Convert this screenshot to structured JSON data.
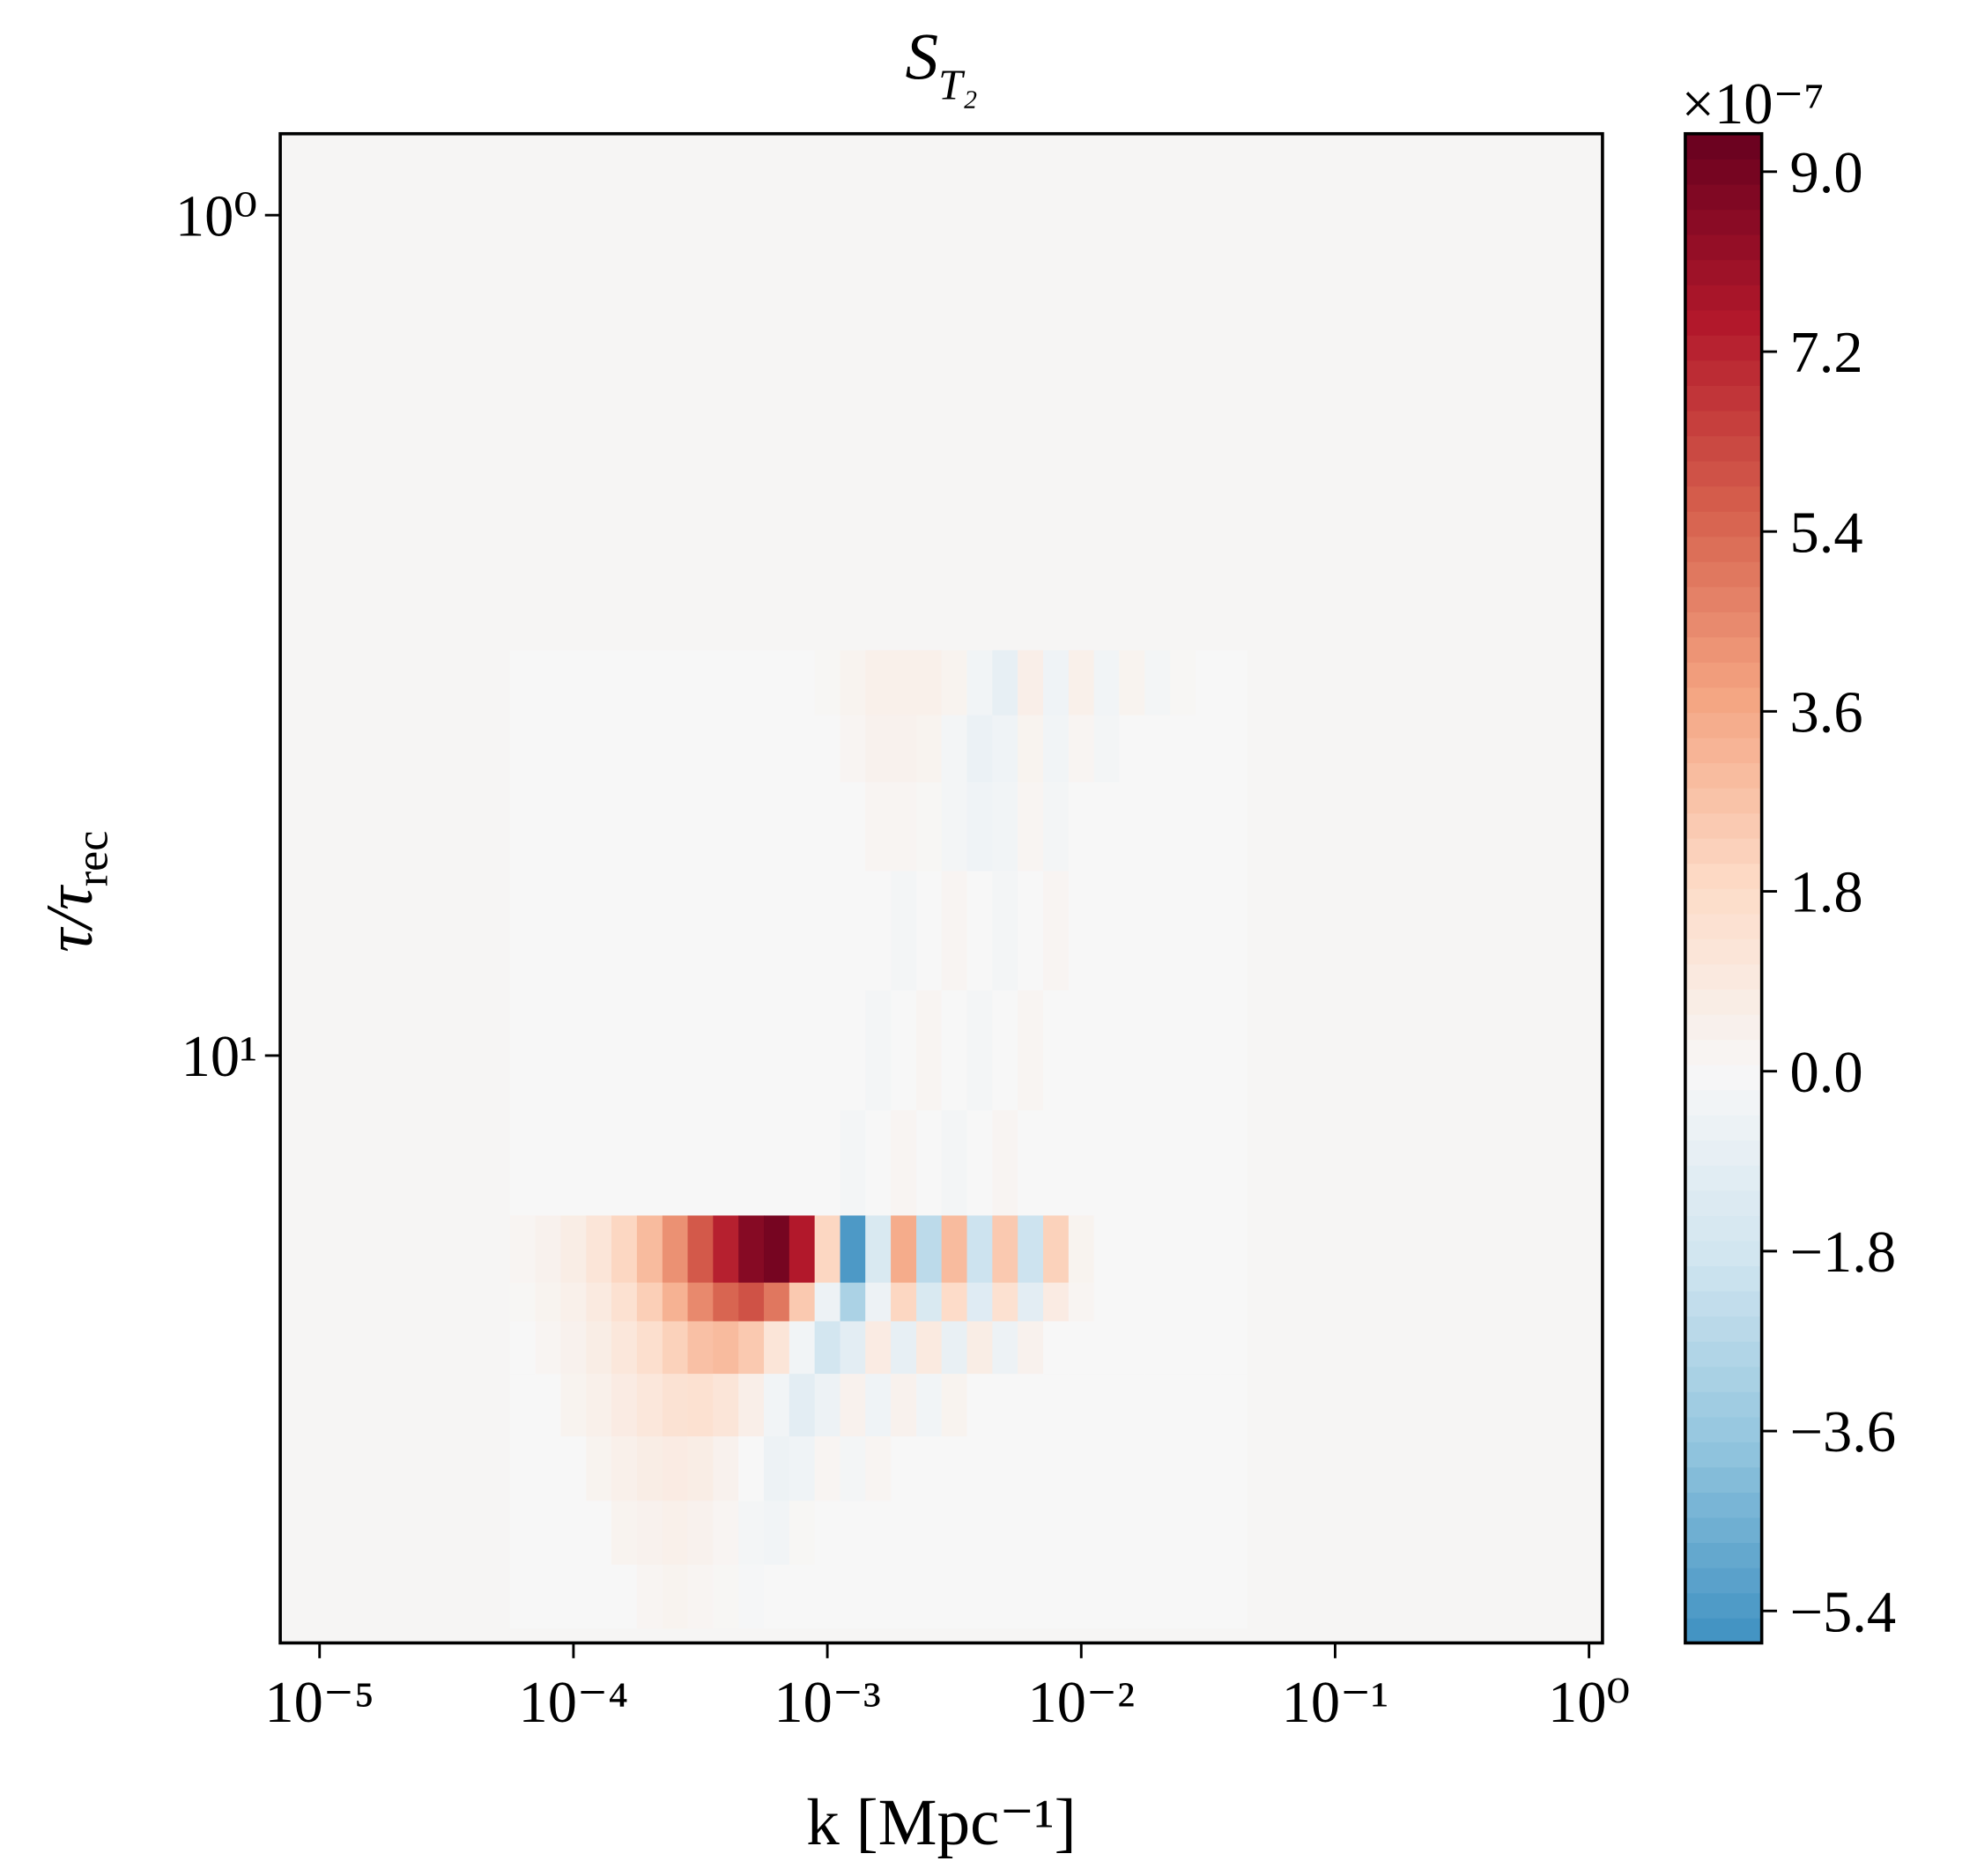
{
  "chart_data": {
    "type": "heatmap",
    "title": "S",
    "title_subscript": "T₂",
    "xlabel": "k [Mpc⁻¹]",
    "ylabel": "τ/τ",
    "ylabel_subscript": "rec",
    "xscale": "log",
    "yscale": "log",
    "xlim": [
      7e-06,
      1.13
    ],
    "ylim": [
      50,
      0.8
    ],
    "xticks": [
      {
        "value": 1e-05,
        "label": "10⁻⁵"
      },
      {
        "value": 0.0001,
        "label": "10⁻⁴"
      },
      {
        "value": 0.001,
        "label": "10⁻³"
      },
      {
        "value": 0.01,
        "label": "10⁻²"
      },
      {
        "value": 0.1,
        "label": "10⁻¹"
      },
      {
        "value": 1,
        "label": "10⁰"
      }
    ],
    "yticks": [
      {
        "value": 1,
        "label": "10⁰"
      },
      {
        "value": 10,
        "label": "10¹"
      }
    ],
    "colormap": "RdBu_r",
    "clim": [
      -5.72,
      9.38
    ],
    "colorbar_offset": "×10⁻⁷",
    "colorbar_ticks": [
      {
        "value": 9,
        "label": "9.0"
      },
      {
        "value": 7.2,
        "label": "7.2"
      },
      {
        "value": 5.4,
        "label": "5.4"
      },
      {
        "value": 3.6,
        "label": "3.6"
      },
      {
        "value": 1.8,
        "label": "1.8"
      },
      {
        "value": 0,
        "label": "0.0"
      },
      {
        "value": -1.8,
        "label": "−1.8"
      },
      {
        "value": -3.6,
        "label": "−3.6"
      },
      {
        "value": -5.4,
        "label": "−5.4"
      }
    ],
    "x": [
      6.31e-05,
      7.94e-05,
      0.0001,
      0.000126,
      0.000158,
      0.0002,
      0.000251,
      0.000316,
      0.000398,
      0.000501,
      0.000631,
      0.000794,
      0.001,
      0.00126,
      0.00158,
      0.002,
      0.00251,
      0.00316,
      0.00398,
      0.00501,
      0.00631,
      0.00794,
      0.01,
      0.0126,
      0.0158,
      0.02,
      0.0251,
      0.0316,
      0.0398
    ],
    "y": [
      3.6,
      4.3,
      5.2,
      7,
      10,
      13.5,
      17.8,
      19.5,
      22,
      26,
      31,
      37,
      44
    ],
    "z": [
      [
        0,
        0,
        0,
        0,
        0,
        0,
        0,
        0,
        0,
        0,
        0,
        0,
        0.1,
        0.3,
        0.5,
        0.5,
        0.5,
        0.3,
        -0.3,
        -0.8,
        0.6,
        -0.4,
        0.5,
        -0.3,
        0.3,
        -0.2,
        0.1,
        0,
        0
      ],
      [
        0,
        0,
        0,
        0,
        0,
        0,
        0,
        0,
        0,
        0,
        0,
        0,
        0,
        0.2,
        0.4,
        0.4,
        0.3,
        -0.2,
        -0.6,
        -0.4,
        0.3,
        -0.3,
        0.2,
        -0.2,
        0,
        0,
        0,
        0,
        0
      ],
      [
        0,
        0,
        0,
        0,
        0,
        0,
        0,
        0,
        0,
        0,
        0,
        0,
        0,
        0,
        0.2,
        0.2,
        0.1,
        -0.2,
        -0.4,
        -0.3,
        0.2,
        -0.2,
        0,
        0,
        0,
        0,
        0,
        0,
        0
      ],
      [
        0,
        0,
        0,
        0,
        0,
        0,
        0,
        0,
        0,
        0,
        0,
        0,
        0,
        0,
        0,
        -0.2,
        0,
        0.2,
        0,
        -0.2,
        0,
        0.2,
        0,
        0,
        0,
        0,
        0,
        0,
        0
      ],
      [
        0,
        0,
        0,
        0,
        0,
        0,
        0,
        0,
        0,
        0,
        0,
        0,
        0,
        0,
        -0.2,
        0,
        0.2,
        0,
        -0.2,
        0,
        0.2,
        0,
        0,
        0,
        0,
        0,
        0,
        0,
        0
      ],
      [
        0,
        0,
        0,
        0,
        0,
        0,
        0,
        0,
        0,
        0,
        0,
        0,
        0,
        -0.2,
        0,
        0.2,
        0,
        -0.2,
        0,
        0.2,
        0,
        0,
        0,
        0,
        0,
        0,
        0,
        0,
        0
      ],
      [
        0.2,
        0.4,
        0.7,
        1.2,
        2,
        3,
        4.3,
        5.8,
        7.3,
        8.6,
        9,
        7.5,
        2,
        -5.4,
        -1.5,
        3.5,
        -2.5,
        3,
        -2,
        2.5,
        -2,
        2.2,
        0.3,
        0,
        0,
        0,
        0,
        0,
        0
      ],
      [
        0.1,
        0.3,
        0.5,
        0.9,
        1.5,
        2.3,
        3.3,
        4.5,
        5.5,
        6,
        5,
        2.5,
        -0.5,
        -3,
        -0.5,
        2,
        -1.5,
        1.8,
        -1.2,
        1.5,
        -1,
        0.8,
        0.2,
        0,
        0,
        0,
        0,
        0,
        0
      ],
      [
        0,
        0.2,
        0.4,
        0.7,
        1.1,
        1.6,
        2.2,
        2.8,
        3,
        2.5,
        1.2,
        -0.3,
        -1.8,
        -1,
        0.8,
        -0.8,
        0.9,
        -0.7,
        0.7,
        -0.5,
        0.4,
        0,
        0,
        0,
        0,
        0,
        0,
        0,
        0
      ],
      [
        0,
        0,
        0.3,
        0.5,
        0.8,
        1.1,
        1.4,
        1.5,
        1.2,
        0.6,
        -0.3,
        -1,
        -0.5,
        0.4,
        -0.4,
        0.4,
        -0.3,
        0.3,
        0,
        0,
        0,
        0,
        0,
        0,
        0,
        0,
        0,
        0,
        0
      ],
      [
        0,
        0,
        0,
        0.3,
        0.5,
        0.7,
        0.8,
        0.7,
        0.4,
        0,
        -0.5,
        -0.4,
        0.2,
        -0.2,
        0.2,
        0,
        0,
        0,
        0,
        0,
        0,
        0,
        0,
        0,
        0,
        0,
        0,
        0,
        0
      ],
      [
        0,
        0,
        0,
        0,
        0.3,
        0.4,
        0.5,
        0.4,
        0.2,
        -0.2,
        -0.3,
        0.1,
        0,
        0,
        0,
        0,
        0,
        0,
        0,
        0,
        0,
        0,
        0,
        0,
        0,
        0,
        0,
        0,
        0
      ],
      [
        0,
        0,
        0,
        0,
        0,
        0.2,
        0.3,
        0.2,
        0.1,
        -0.1,
        0,
        0,
        0,
        0,
        0,
        0,
        0,
        0,
        0,
        0,
        0,
        0,
        0,
        0,
        0,
        0,
        0,
        0,
        0
      ]
    ]
  }
}
